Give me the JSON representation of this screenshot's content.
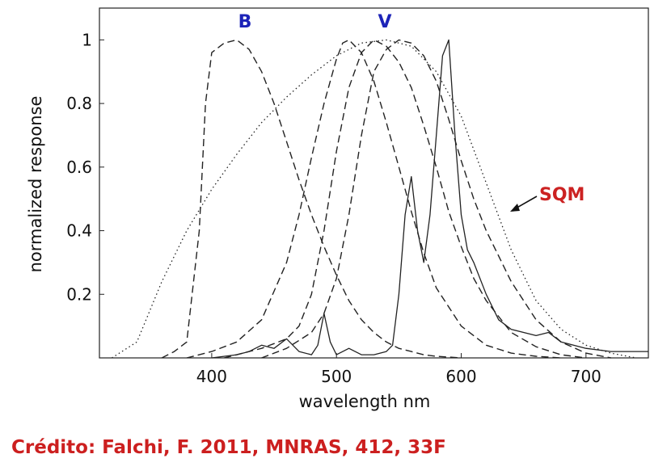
{
  "chart_data": {
    "type": "line",
    "xlabel": "wavelength nm",
    "ylabel": "normalized response",
    "xlim": [
      310,
      750
    ],
    "ylim": [
      0,
      1.1
    ],
    "x_ticks": [
      "400",
      "500",
      "600",
      "700"
    ],
    "y_ticks": [
      "0.2",
      "0.4",
      "0.6",
      "0.8",
      "1"
    ],
    "annotations": {
      "b": "B",
      "v": "V",
      "sqm": "SQM"
    },
    "series": [
      {
        "name": "B",
        "style": "dashed",
        "x": [
          360,
          370,
          380,
          390,
          395,
          400,
          410,
          420,
          430,
          440,
          450,
          460,
          470,
          480,
          490,
          500,
          510,
          520,
          530,
          540,
          550,
          560,
          570,
          580,
          600
        ],
        "y": [
          0,
          0.02,
          0.05,
          0.4,
          0.8,
          0.96,
          0.99,
          1.0,
          0.97,
          0.9,
          0.8,
          0.68,
          0.56,
          0.45,
          0.35,
          0.26,
          0.18,
          0.12,
          0.08,
          0.05,
          0.03,
          0.02,
          0.01,
          0.005,
          0
        ]
      },
      {
        "style": "dashed",
        "x": [
          380,
          400,
          420,
          440,
          460,
          470,
          480,
          490,
          500,
          505,
          510,
          520,
          530,
          540,
          550,
          560,
          570,
          580,
          600,
          620,
          640,
          660,
          680
        ],
        "y": [
          0,
          0.02,
          0.05,
          0.12,
          0.3,
          0.45,
          0.63,
          0.8,
          0.94,
          0.99,
          1.0,
          0.96,
          0.87,
          0.74,
          0.6,
          0.46,
          0.33,
          0.22,
          0.1,
          0.04,
          0.015,
          0.005,
          0
        ]
      },
      {
        "name": "V",
        "style": "dashed",
        "x": [
          410,
          440,
          460,
          470,
          480,
          490,
          500,
          510,
          520,
          530,
          540,
          550,
          560,
          570,
          580,
          590,
          600,
          610,
          620,
          640,
          660,
          680,
          700
        ],
        "y": [
          0,
          0.03,
          0.06,
          0.1,
          0.2,
          0.4,
          0.65,
          0.85,
          0.96,
          1.0,
          0.98,
          0.93,
          0.85,
          0.73,
          0.6,
          0.46,
          0.35,
          0.25,
          0.18,
          0.08,
          0.035,
          0.01,
          0
        ]
      },
      {
        "style": "dashed",
        "x": [
          440,
          460,
          480,
          490,
          500,
          510,
          520,
          530,
          540,
          550,
          560,
          570,
          580,
          590,
          600,
          610,
          620,
          640,
          660,
          680,
          700,
          720
        ],
        "y": [
          0,
          0.03,
          0.08,
          0.14,
          0.25,
          0.45,
          0.7,
          0.9,
          0.97,
          1.0,
          0.99,
          0.95,
          0.87,
          0.75,
          0.62,
          0.5,
          0.4,
          0.24,
          0.12,
          0.05,
          0.015,
          0
        ]
      },
      {
        "name": "SQM",
        "style": "dotted",
        "x": [
          320,
          340,
          360,
          380,
          400,
          420,
          440,
          460,
          480,
          500,
          520,
          540,
          560,
          580,
          600,
          620,
          640,
          660,
          680,
          700,
          720,
          740
        ],
        "y": [
          0,
          0.05,
          0.24,
          0.4,
          0.53,
          0.64,
          0.74,
          0.82,
          0.89,
          0.95,
          0.99,
          1.0,
          0.98,
          0.9,
          0.76,
          0.55,
          0.34,
          0.18,
          0.09,
          0.04,
          0.015,
          0
        ]
      },
      {
        "style": "solid",
        "x": [
          400,
          420,
          430,
          440,
          450,
          460,
          470,
          480,
          485,
          490,
          495,
          500,
          510,
          520,
          530,
          540,
          545,
          550,
          555,
          560,
          565,
          570,
          575,
          580,
          585,
          590,
          595,
          600,
          605,
          610,
          620,
          630,
          640,
          660,
          670,
          680,
          700,
          720,
          750
        ],
        "y": [
          0,
          0.01,
          0.02,
          0.04,
          0.03,
          0.06,
          0.02,
          0.01,
          0.04,
          0.14,
          0.05,
          0.01,
          0.03,
          0.01,
          0.01,
          0.02,
          0.04,
          0.2,
          0.45,
          0.57,
          0.4,
          0.3,
          0.45,
          0.7,
          0.95,
          1.0,
          0.7,
          0.45,
          0.34,
          0.3,
          0.2,
          0.12,
          0.09,
          0.07,
          0.08,
          0.05,
          0.03,
          0.02,
          0.02
        ]
      }
    ]
  },
  "credit": "Crédito: Falchi, F. 2011, MNRAS, 412, 33F"
}
